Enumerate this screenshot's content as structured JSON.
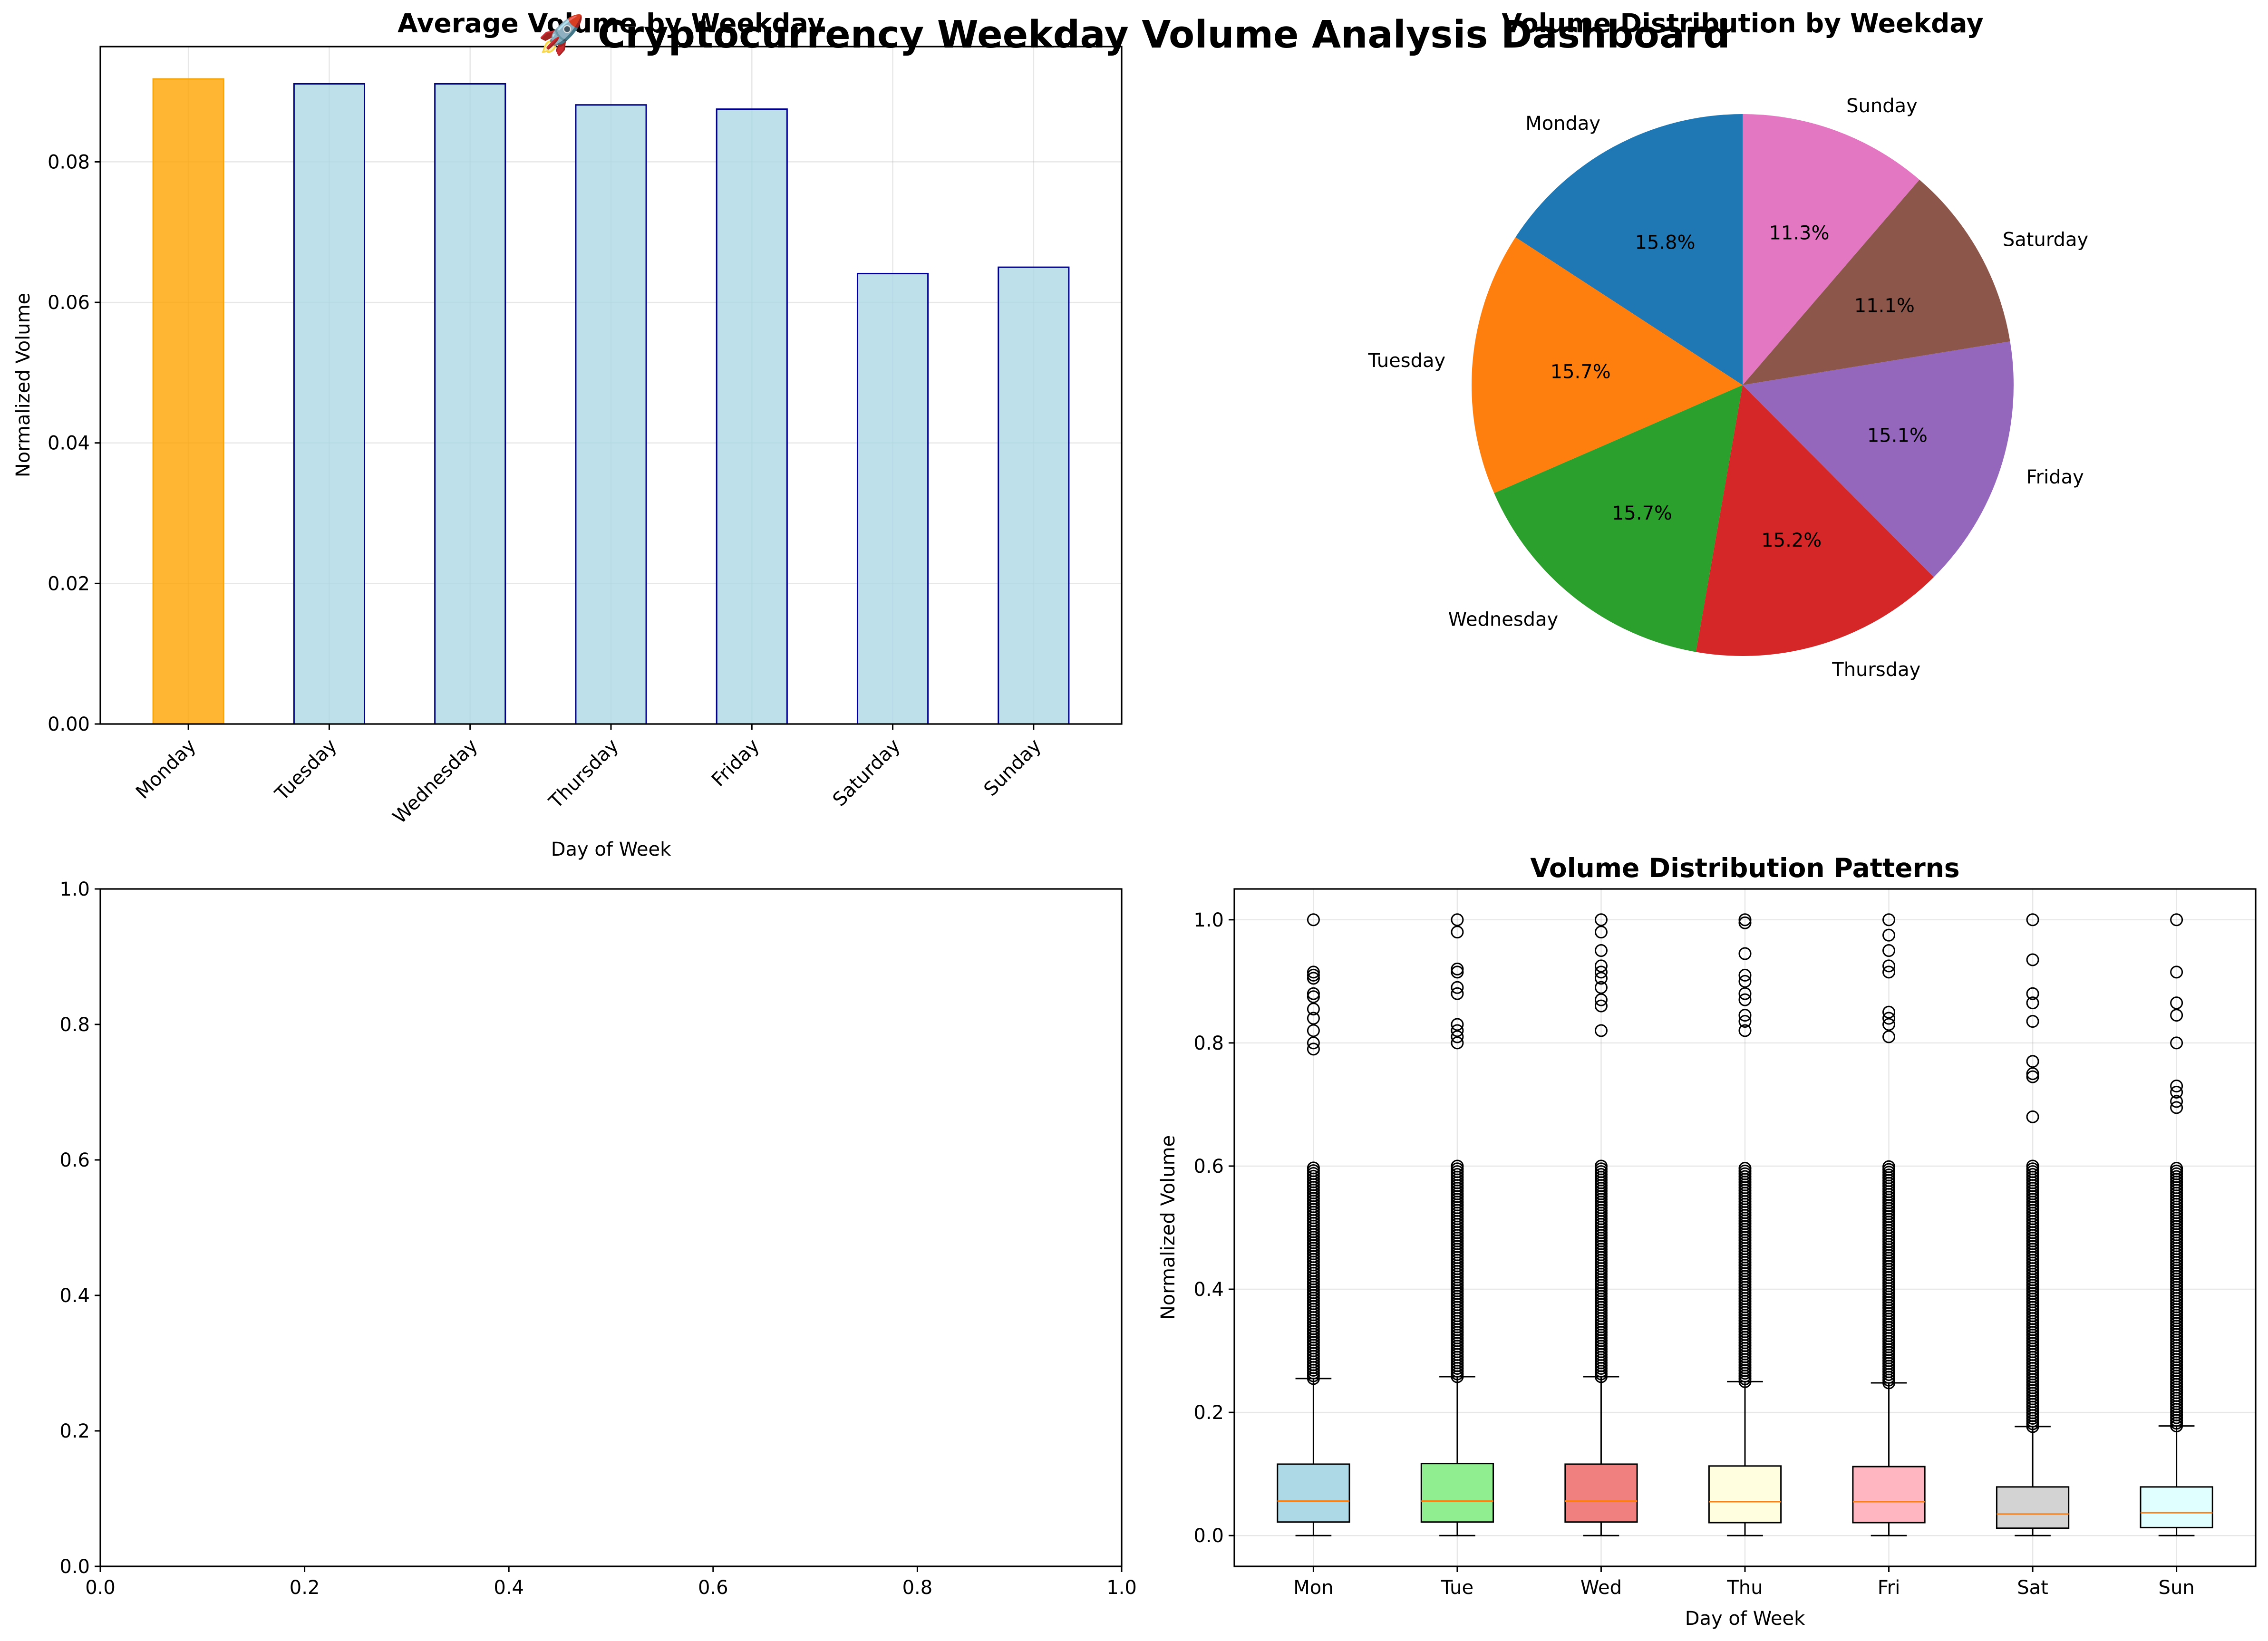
{
  "suptitle": "🚀 Cryptocurrency Weekday Volume Analysis Dashboard",
  "chart_data": [
    {
      "type": "bar",
      "title": "Average Volume by Weekday",
      "xlabel": "Day of Week",
      "ylabel": "Normalized Volume",
      "categories": [
        "Monday",
        "Tuesday",
        "Wednesday",
        "Thursday",
        "Friday",
        "Saturday",
        "Sunday"
      ],
      "values": [
        0.0918,
        0.0911,
        0.0911,
        0.0881,
        0.0875,
        0.0641,
        0.065
      ],
      "ylim": [
        0,
        0.0964
      ],
      "yticks": [
        "0.00",
        "0.02",
        "0.04",
        "0.06",
        "0.08"
      ],
      "highlight_color": "#ffa500",
      "bar_color": "#add8e6",
      "edge_color": "#00008b",
      "grid": true
    },
    {
      "type": "pie",
      "title": "Volume Distribution by Weekday",
      "labels": [
        "Monday",
        "Tuesday",
        "Wednesday",
        "Thursday",
        "Friday",
        "Saturday",
        "Sunday"
      ],
      "percent_labels": [
        "15.8%",
        "15.7%",
        "15.7%",
        "15.2%",
        "15.1%",
        "11.1%",
        "11.3%"
      ],
      "values": [
        15.8,
        15.7,
        15.7,
        15.2,
        15.1,
        11.1,
        11.3
      ],
      "colors": [
        "#1f77b4",
        "#ff7f0e",
        "#2ca02c",
        "#d62728",
        "#9467bd",
        "#8c564b",
        "#e377c2"
      ],
      "start_angle": 90
    },
    {
      "type": "scatter",
      "title": "",
      "xlim": [
        0,
        1
      ],
      "ylim": [
        0,
        1
      ],
      "xticks": [
        "0.0",
        "0.2",
        "0.4",
        "0.6",
        "0.8",
        "1.0"
      ],
      "yticks": [
        "0.0",
        "0.2",
        "0.4",
        "0.6",
        "0.8",
        "1.0"
      ],
      "values": []
    },
    {
      "type": "box",
      "title": "Volume Distribution Patterns",
      "xlabel": "Day of Week",
      "ylabel": "Normalized Volume",
      "categories": [
        "Mon",
        "Tue",
        "Wed",
        "Thu",
        "Fri",
        "Sat",
        "Sun"
      ],
      "ylim": [
        -0.05,
        1.05
      ],
      "yticks": [
        "0.0",
        "0.2",
        "0.4",
        "0.6",
        "0.8",
        "1.0"
      ],
      "grid": true,
      "box_colors": [
        "#add8e6",
        "#90ee90",
        "#f08080",
        "#ffffe0",
        "#ffb6c1",
        "#d3d3d3",
        "#e0ffff"
      ],
      "median_color": "#ff7f0e",
      "boxes": [
        {
          "min": 0.0,
          "q1": 0.022,
          "median": 0.056,
          "q3": 0.116,
          "max": 0.255,
          "outlier_start": 0.255,
          "outliers_upper": [
            0.79,
            0.8,
            0.82,
            0.84,
            0.855,
            0.875,
            0.88,
            0.905,
            0.91,
            0.915,
            1.0
          ]
        },
        {
          "min": 0.0,
          "q1": 0.022,
          "median": 0.056,
          "q3": 0.117,
          "max": 0.258,
          "outlier_start": 0.258,
          "outliers_upper": [
            0.8,
            0.81,
            0.82,
            0.83,
            0.88,
            0.89,
            0.915,
            0.92,
            0.98,
            1.0
          ]
        },
        {
          "min": 0.0,
          "q1": 0.022,
          "median": 0.056,
          "q3": 0.116,
          "max": 0.258,
          "outlier_start": 0.258,
          "outliers_upper": [
            0.82,
            0.86,
            0.87,
            0.89,
            0.905,
            0.915,
            0.925,
            0.95,
            0.98,
            1.0
          ]
        },
        {
          "min": 0.0,
          "q1": 0.021,
          "median": 0.055,
          "q3": 0.113,
          "max": 0.25,
          "outlier_start": 0.25,
          "outliers_upper": [
            0.82,
            0.835,
            0.845,
            0.87,
            0.88,
            0.9,
            0.91,
            0.945,
            0.995,
            1.0
          ]
        },
        {
          "min": 0.0,
          "q1": 0.021,
          "median": 0.055,
          "q3": 0.112,
          "max": 0.248,
          "outlier_start": 0.248,
          "outliers_upper": [
            0.81,
            0.83,
            0.84,
            0.85,
            0.915,
            0.925,
            0.95,
            0.975,
            1.0
          ]
        },
        {
          "min": 0.0,
          "q1": 0.012,
          "median": 0.035,
          "q3": 0.079,
          "max": 0.177,
          "outlier_start": 0.177,
          "outliers_upper": [
            0.68,
            0.745,
            0.75,
            0.77,
            0.835,
            0.865,
            0.88,
            0.935,
            1.0
          ]
        },
        {
          "min": 0.0,
          "q1": 0.013,
          "median": 0.037,
          "q3": 0.079,
          "max": 0.178,
          "outlier_start": 0.178,
          "outliers_upper": [
            0.695,
            0.705,
            0.72,
            0.73,
            0.8,
            0.845,
            0.865,
            0.915,
            1.0
          ]
        }
      ]
    }
  ]
}
